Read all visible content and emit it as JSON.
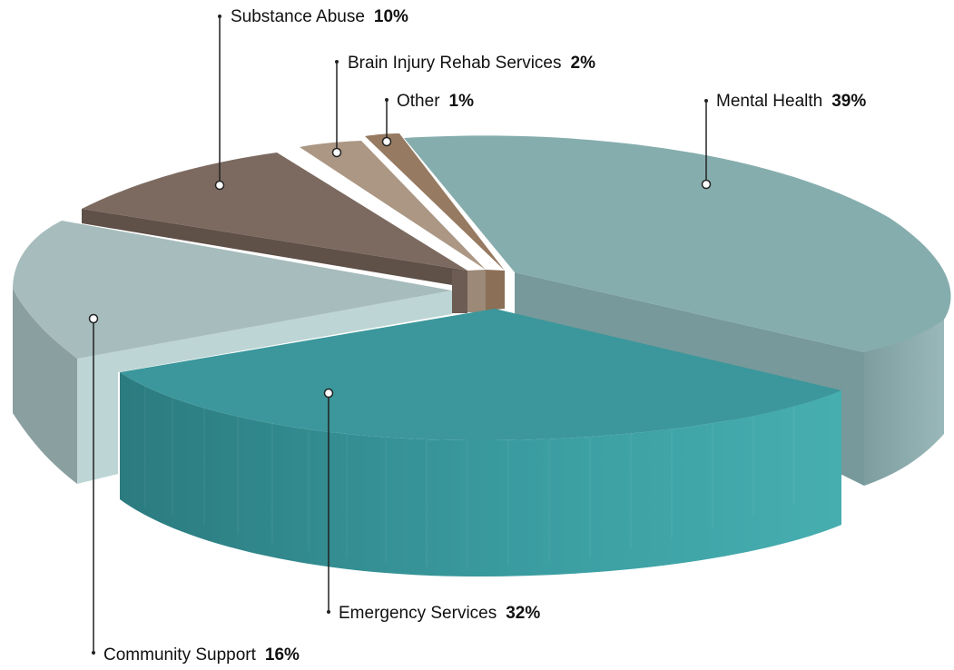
{
  "chart_data": {
    "type": "pie",
    "style": "3d-exploded",
    "slices": [
      {
        "label": "Mental Health",
        "value": 39,
        "value_label": "39%",
        "color": "#86adae"
      },
      {
        "label": "Emergency Services",
        "value": 32,
        "value_label": "32%",
        "color": "#3b979b"
      },
      {
        "label": "Community Support",
        "value": 16,
        "value_label": "16%",
        "color": "#a7bcbc"
      },
      {
        "label": "Substance Abuse",
        "value": 10,
        "value_label": "10%",
        "color": "#7c6a60"
      },
      {
        "label": "Brain Injury Rehab Services",
        "value": 2,
        "value_label": "2%",
        "color": "#ab9784"
      },
      {
        "label": "Other",
        "value": 1,
        "value_label": "1%",
        "color": "#967a61"
      }
    ]
  }
}
